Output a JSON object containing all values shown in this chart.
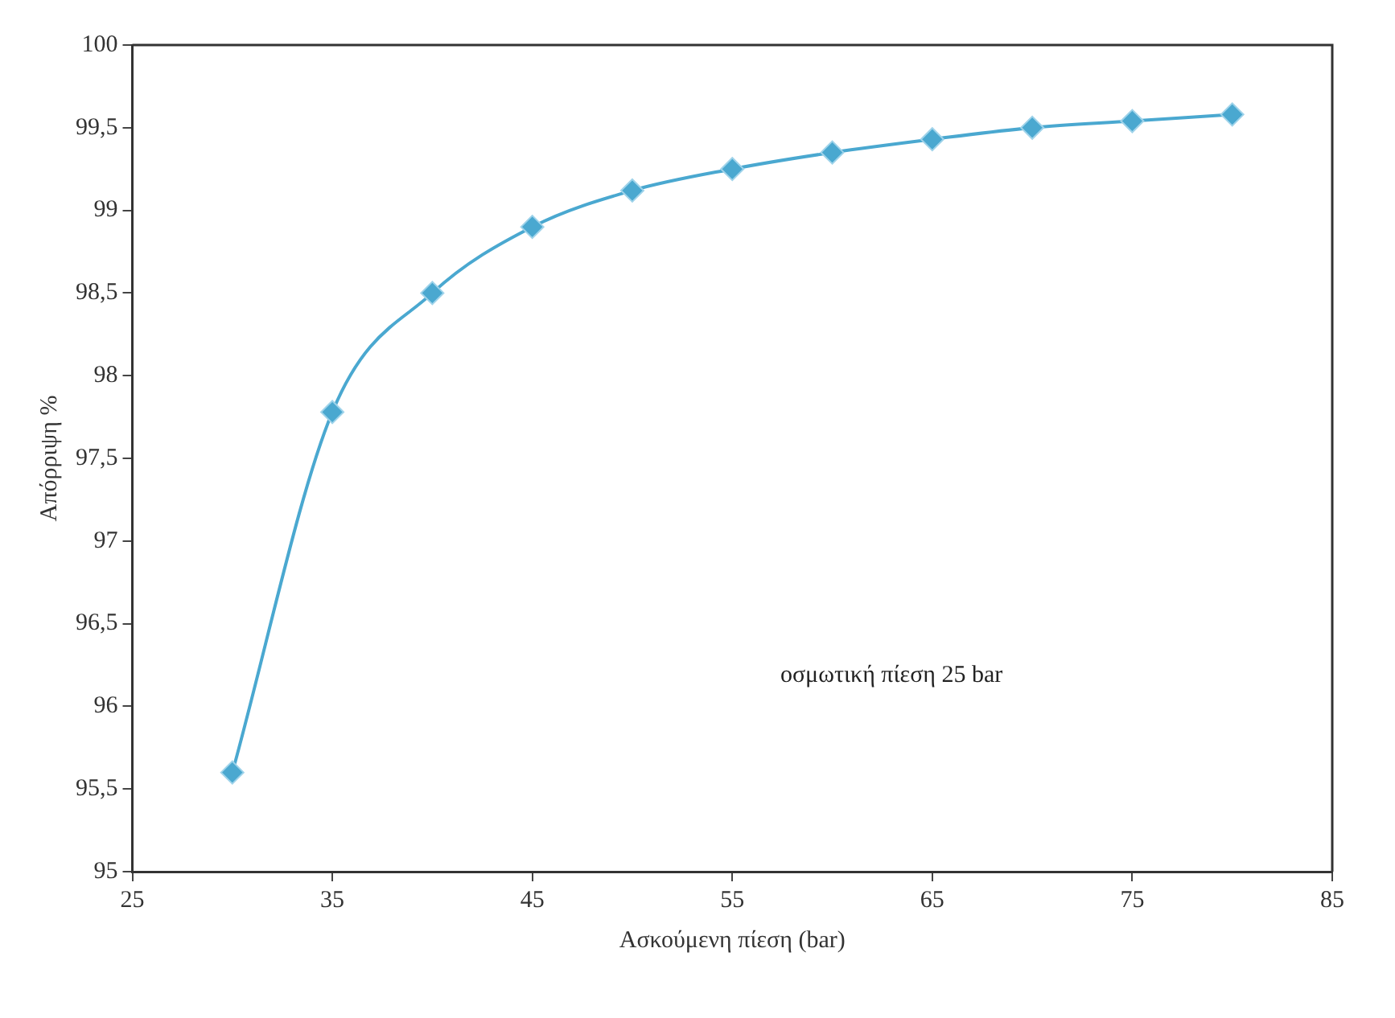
{
  "chart_data": {
    "type": "line",
    "xlabel": "Ασκούμενη πίεση (bar)",
    "ylabel": "Απόρριψη %",
    "annotations": [
      "οσμωτική πίεση 25 bar"
    ],
    "x": [
      30,
      35,
      40,
      45,
      50,
      55,
      60,
      65,
      70,
      75,
      80
    ],
    "series": [
      {
        "color": "#4aa8d0",
        "values": [
          95.6,
          97.78,
          98.5,
          98.9,
          99.12,
          99.25,
          99.35,
          99.43,
          99.5,
          99.54,
          99.58
        ]
      }
    ],
    "xlim": [
      25,
      85
    ],
    "xticks": [
      25,
      35,
      45,
      55,
      65,
      75,
      85
    ],
    "ylim": [
      95,
      100
    ],
    "yticks": [
      95,
      {
        "value": 95.5,
        "label": "95,5"
      },
      96,
      {
        "value": 96.5,
        "label": "96,5"
      },
      97,
      {
        "value": 97.5,
        "label": "97,5"
      },
      98,
      {
        "value": 98.5,
        "label": "98,5"
      },
      99,
      {
        "value": 99.5,
        "label": "99,5"
      },
      100
    ],
    "grid": false,
    "legend": false,
    "marker": "diamond",
    "line_style": "solid"
  }
}
